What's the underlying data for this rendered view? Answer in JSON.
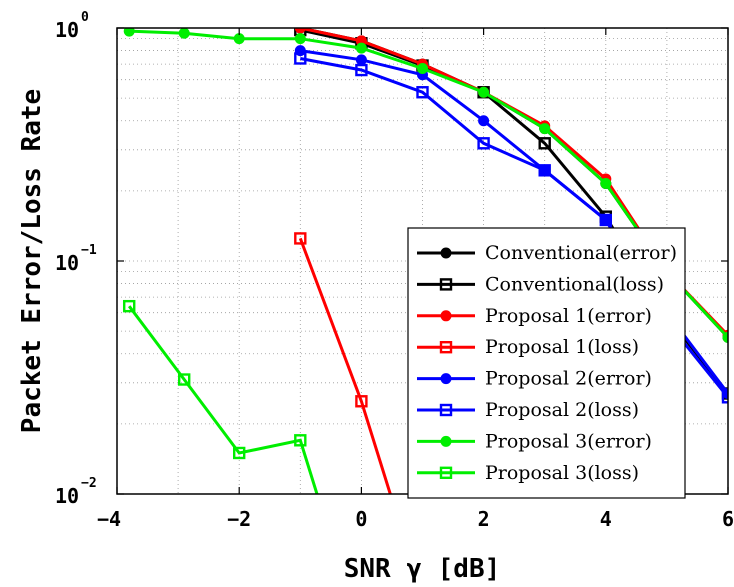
{
  "chart_data": {
    "type": "line",
    "xlabel": "SNR γ [dB]",
    "ylabel": "Packet Error/Loss Rate",
    "xlim": [
      -4,
      6
    ],
    "ylim": [
      0.01,
      1
    ],
    "yscale": "log",
    "grid": true,
    "legend_position": "bottom-right",
    "x_ticks": [
      "−4",
      "−2",
      "0",
      "2",
      "4",
      "6"
    ],
    "y_ticks": [
      {
        "base": "10",
        "exp": "0"
      },
      {
        "base": "10",
        "exp": "−1"
      },
      {
        "base": "10",
        "exp": "−2"
      }
    ],
    "series": [
      {
        "name": "Conventional(error)",
        "color": "#000000",
        "marker": "circle",
        "x": [
          -1,
          0,
          1,
          2,
          3,
          4,
          5,
          6
        ],
        "y": [
          1.0,
          0.88,
          0.7,
          0.53,
          0.37,
          0.215,
          0.09,
          0.047
        ]
      },
      {
        "name": "Conventional(loss)",
        "color": "#000000",
        "marker": "square",
        "x": [
          -1,
          0,
          1,
          2,
          3,
          4,
          5,
          6
        ],
        "y": [
          0.98,
          0.86,
          0.69,
          0.53,
          0.32,
          0.155,
          0.058,
          0.027
        ]
      },
      {
        "name": "Proposal 1(error)",
        "color": "#ff0000",
        "marker": "circle",
        "x": [
          -1,
          0,
          1,
          2,
          3,
          4,
          5,
          6
        ],
        "y": [
          1.0,
          0.88,
          0.7,
          0.53,
          0.38,
          0.225,
          0.09,
          0.048
        ]
      },
      {
        "name": "Proposal 1(loss)",
        "color": "#ff0000",
        "marker": "square",
        "x": [
          -1,
          0,
          0.5
        ],
        "y": [
          0.125,
          0.025,
          0.0095
        ]
      },
      {
        "name": "Proposal 2(error)",
        "color": "#0000ff",
        "marker": "circle",
        "x": [
          -1,
          0,
          1,
          2,
          3,
          4,
          5,
          6
        ],
        "y": [
          0.8,
          0.73,
          0.63,
          0.4,
          0.245,
          0.15,
          0.06,
          0.027
        ]
      },
      {
        "name": "Proposal 2(loss)",
        "color": "#0000ff",
        "marker": "square",
        "x": [
          -1,
          0,
          1,
          2,
          3,
          4,
          5,
          6
        ],
        "y": [
          0.74,
          0.66,
          0.53,
          0.32,
          0.245,
          0.15,
          0.055,
          0.026
        ]
      },
      {
        "name": "Proposal 3(error)",
        "color": "#00ee00",
        "marker": "circle",
        "x": [
          -3.8,
          -2.9,
          -2,
          -1,
          0,
          1,
          2,
          3,
          4,
          5,
          6
        ],
        "y": [
          0.97,
          0.95,
          0.9,
          0.9,
          0.82,
          0.67,
          0.53,
          0.37,
          0.215,
          0.09,
          0.047
        ]
      },
      {
        "name": "Proposal 3(loss)",
        "color": "#00ee00",
        "marker": "square",
        "x": [
          -3.8,
          -2.9,
          -2,
          -1,
          -0.7
        ],
        "y": [
          0.064,
          0.031,
          0.015,
          0.017,
          0.0095
        ]
      }
    ]
  }
}
